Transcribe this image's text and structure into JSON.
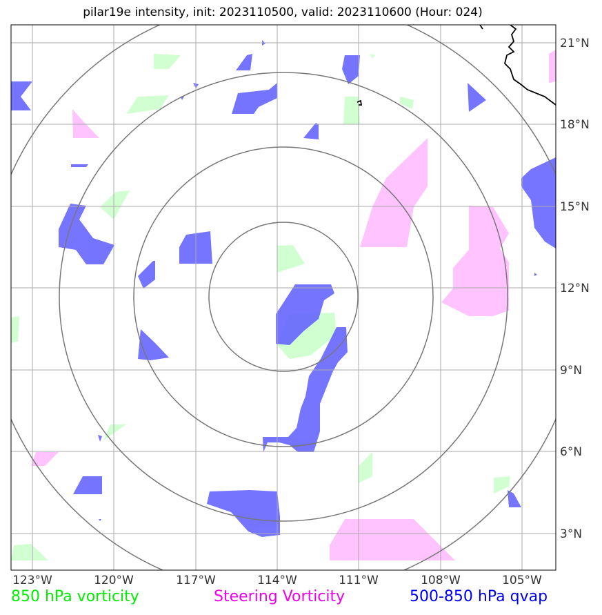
{
  "title": "pilar19e intensity, init: 2023110500, valid: 2023110600 (Hour: 024)",
  "lat_labels": [
    "21°N",
    "18°N",
    "15°N",
    "12°N",
    "9°N",
    "6°N",
    "3°N"
  ],
  "lon_labels": [
    "123°W",
    "120°W",
    "117°W",
    "114°W",
    "111°W",
    "108°W",
    "105°W"
  ],
  "legend": {
    "vort850": {
      "label": "850 hPa vorticity",
      "color": "#00ee00"
    },
    "steering": {
      "label": "Steering Vorticity",
      "color": "#ee00ee"
    },
    "qvap": {
      "label": "500-850 hPa qvap",
      "color": "#0000ee"
    }
  },
  "colors": {
    "vort850_fill": "#ccffcc",
    "steering_fill": "#ffb8ff",
    "qvap_fill": "#6666ff",
    "range_rings": "#777777",
    "gridlines": "#aaaaaa",
    "coastline": "#000000"
  }
}
